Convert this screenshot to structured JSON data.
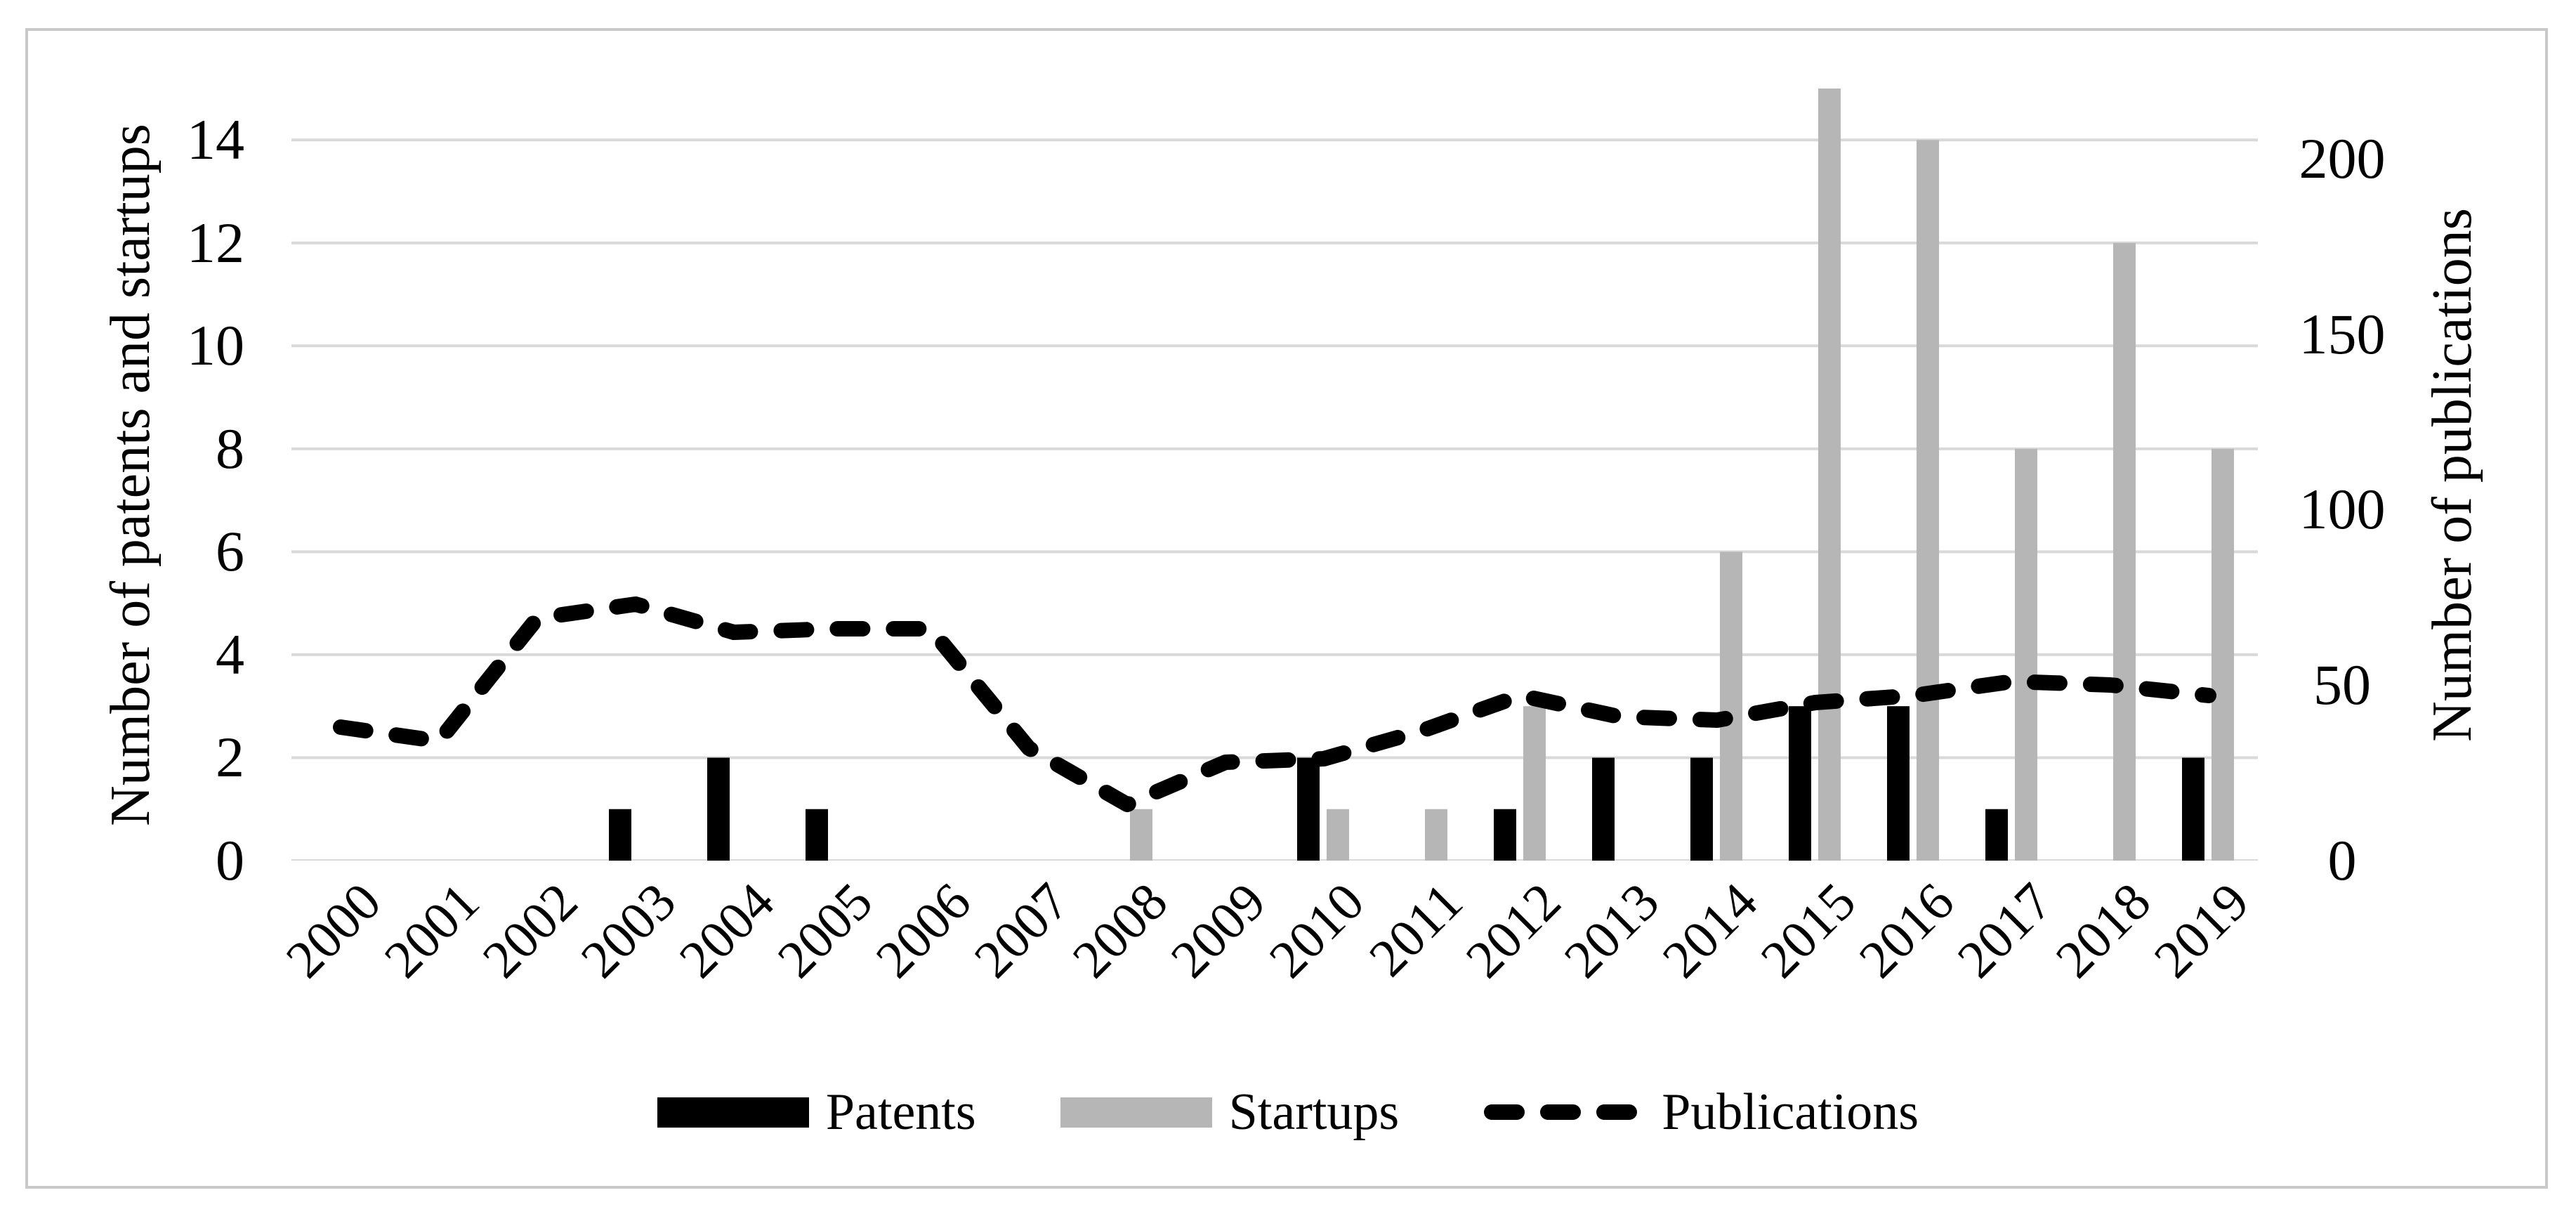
{
  "figure": {
    "background": "#ffffff",
    "frame_color": "#c9c9c9"
  },
  "chart_data": {
    "type": "bar",
    "subtype": "dual-axis combo: grouped bars + dashed line",
    "years": [
      "2000",
      "2001",
      "2002",
      "2003",
      "2004",
      "2005",
      "2006",
      "2007",
      "2008",
      "2009",
      "2010",
      "2011",
      "2012",
      "2013",
      "2014",
      "2015",
      "2016",
      "2017",
      "2018",
      "2019"
    ],
    "series": [
      {
        "name": "Patents",
        "type": "bar",
        "axis": "left",
        "values": [
          0,
          0,
          0,
          1,
          2,
          1,
          0,
          0,
          0,
          0,
          2,
          0,
          1,
          2,
          2,
          3,
          3,
          1,
          0,
          2
        ]
      },
      {
        "name": "Startups",
        "type": "bar",
        "axis": "left",
        "values": [
          0,
          0,
          0,
          0,
          0,
          0,
          0,
          0,
          1,
          0,
          1,
          1,
          3,
          0,
          6,
          15,
          14,
          8,
          12,
          8
        ]
      },
      {
        "name": "Publications",
        "type": "line",
        "axis": "right",
        "dashed": true,
        "values": [
          38,
          34,
          69,
          73,
          65,
          66,
          66,
          32,
          16,
          28,
          29,
          37,
          47,
          41,
          40,
          45,
          47,
          51,
          50,
          47
        ]
      }
    ],
    "left_axis": {
      "label": "Number of patents and startups",
      "min": 0,
      "max": 15,
      "ticks": [
        0,
        2,
        4,
        6,
        8,
        10,
        12,
        14
      ]
    },
    "right_axis": {
      "label": "Number of publications",
      "min": 0,
      "max": 220,
      "ticks": [
        0,
        50,
        100,
        150,
        200
      ]
    },
    "legend": [
      {
        "label": "Patents",
        "swatch": "bar"
      },
      {
        "label": "Startups",
        "swatch": "bar"
      },
      {
        "label": "Publications",
        "swatch": "dash"
      }
    ],
    "colors": {
      "patents": "#000000",
      "startups": "#b6b6b6",
      "publications": "#000000",
      "grid": "#d9d9d9"
    },
    "grid": "horizontal-only",
    "legend_position": "bottom-center"
  }
}
